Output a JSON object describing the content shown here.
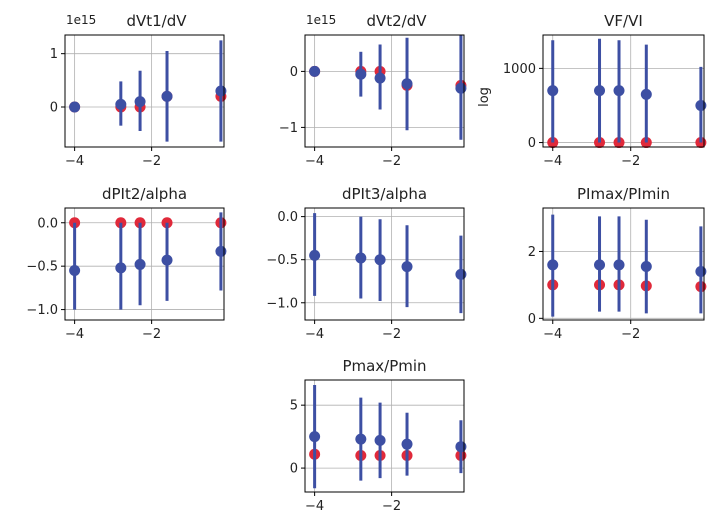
{
  "figure": {
    "background": "#ffffff"
  },
  "colors": {
    "blue": "#3d4fa3",
    "red": "#e0293a",
    "grid": "#b0b0b0",
    "axis": "#000000"
  },
  "chart_data": [
    {
      "type": "scatter",
      "title": "dVt1/dV",
      "offset_text": "1e15",
      "ylabel": "",
      "xlim": [
        -4.25,
        -0.12
      ],
      "ylim": [
        -0.75,
        1.35
      ],
      "xticks": [
        -4,
        -2
      ],
      "xtick_labels": [
        "−4",
        "−2"
      ],
      "yticks": [
        0,
        1
      ],
      "ytick_labels": [
        "0",
        "1"
      ],
      "grid": true,
      "x": [
        -4,
        -2.8,
        -2.3,
        -1.6,
        -0.2
      ],
      "series": [
        {
          "color": "#e0293a",
          "values": [
            0,
            0,
            0,
            0.2,
            0.2
          ]
        },
        {
          "color": "#3d4fa3",
          "values": [
            0,
            0.05,
            0.1,
            0.2,
            0.3
          ],
          "err_low": [
            -0.02,
            -0.35,
            -0.45,
            -0.65,
            -0.65
          ],
          "err_high": [
            0.02,
            0.48,
            0.68,
            1.05,
            1.25
          ]
        }
      ]
    },
    {
      "type": "scatter",
      "title": "dVt2/dV",
      "offset_text": "1e15",
      "ylabel": "",
      "xlim": [
        -4.25,
        -0.12
      ],
      "ylim": [
        -1.35,
        0.65
      ],
      "xticks": [
        -4,
        -2
      ],
      "xtick_labels": [
        "−4",
        "−2"
      ],
      "yticks": [
        0,
        -1
      ],
      "ytick_labels": [
        "0",
        "−1"
      ],
      "grid": true,
      "x": [
        -4,
        -2.8,
        -2.3,
        -1.6,
        -0.2
      ],
      "series": [
        {
          "color": "#e0293a",
          "values": [
            0,
            0,
            0,
            -0.25,
            -0.25
          ]
        },
        {
          "color": "#3d4fa3",
          "values": [
            0,
            -0.05,
            -0.12,
            -0.22,
            -0.3
          ],
          "err_low": [
            -0.02,
            -0.45,
            -0.68,
            -1.05,
            -1.22
          ],
          "err_high": [
            0.02,
            0.35,
            0.48,
            0.6,
            0.65
          ]
        }
      ]
    },
    {
      "type": "scatter",
      "title": "VF/VI",
      "offset_text": "",
      "ylabel": "log",
      "xlim": [
        -4.25,
        -0.12
      ],
      "ylim": [
        -60,
        1450
      ],
      "xticks": [
        -4,
        -2
      ],
      "xtick_labels": [
        "−4",
        "−2"
      ],
      "yticks": [
        0,
        1000
      ],
      "ytick_labels": [
        "0",
        "1000"
      ],
      "grid": true,
      "x": [
        -4,
        -2.8,
        -2.3,
        -1.6,
        -0.2
      ],
      "series": [
        {
          "color": "#e0293a",
          "values": [
            0,
            0,
            0,
            0,
            0
          ]
        },
        {
          "color": "#3d4fa3",
          "values": [
            700,
            700,
            700,
            650,
            500
          ],
          "err_low": [
            0,
            0,
            0,
            0,
            0
          ],
          "err_high": [
            1380,
            1400,
            1380,
            1320,
            1020
          ]
        }
      ]
    },
    {
      "type": "scatter",
      "title": "dPIt2/alpha",
      "offset_text": "",
      "ylabel": "",
      "xlim": [
        -4.25,
        -0.12
      ],
      "ylim": [
        -1.12,
        0.17
      ],
      "xticks": [
        -4,
        -2
      ],
      "xtick_labels": [
        "−4",
        "−2"
      ],
      "yticks": [
        0,
        -0.5,
        -1
      ],
      "ytick_labels": [
        "0.0",
        "−0.5",
        "−1.0"
      ],
      "grid": true,
      "x": [
        -4,
        -2.8,
        -2.3,
        -1.6,
        -0.2
      ],
      "series": [
        {
          "color": "#e0293a",
          "values": [
            0,
            0,
            0,
            0,
            0
          ]
        },
        {
          "color": "#3d4fa3",
          "values": [
            -0.55,
            -0.52,
            -0.48,
            -0.43,
            -0.33
          ],
          "err_low": [
            -1.0,
            -1.0,
            -0.95,
            -0.9,
            -0.78
          ],
          "err_high": [
            0,
            0,
            0,
            0,
            0.12
          ]
        }
      ]
    },
    {
      "type": "scatter",
      "title": "dPIt3/alpha",
      "offset_text": "",
      "ylabel": "",
      "xlim": [
        -4.25,
        -0.12
      ],
      "ylim": [
        -1.2,
        0.1
      ],
      "xticks": [
        -4,
        -2
      ],
      "xtick_labels": [
        "−4",
        "−2"
      ],
      "yticks": [
        0,
        -0.5,
        -1
      ],
      "ytick_labels": [
        "0.0",
        "−0.5",
        "−1.0"
      ],
      "grid": true,
      "x": [
        -4,
        -2.8,
        -2.3,
        -1.6,
        -0.2
      ],
      "series": [
        {
          "color": "#3d4fa3",
          "values": [
            -0.45,
            -0.48,
            -0.5,
            -0.58,
            -0.67
          ],
          "err_low": [
            -0.92,
            -0.95,
            -0.98,
            -1.05,
            -1.12
          ],
          "err_high": [
            0.04,
            0.0,
            -0.03,
            -0.1,
            -0.22
          ]
        }
      ]
    },
    {
      "type": "scatter",
      "title": "PImax/PImin",
      "offset_text": "",
      "ylabel": "",
      "xlim": [
        -4.25,
        -0.12
      ],
      "ylim": [
        -0.05,
        3.3
      ],
      "xticks": [
        -4,
        -2
      ],
      "xtick_labels": [
        "−4",
        "−2"
      ],
      "yticks": [
        0,
        2
      ],
      "ytick_labels": [
        "0",
        "2"
      ],
      "grid": true,
      "x": [
        -4,
        -2.8,
        -2.3,
        -1.6,
        -0.2
      ],
      "series": [
        {
          "color": "#e0293a",
          "values": [
            1.0,
            1.0,
            1.0,
            0.97,
            0.95
          ]
        },
        {
          "color": "#3d4fa3",
          "values": [
            1.6,
            1.6,
            1.6,
            1.55,
            1.4
          ],
          "err_low": [
            0.05,
            0.2,
            0.2,
            0.15,
            0.15
          ],
          "err_high": [
            3.1,
            3.05,
            3.05,
            2.95,
            2.75
          ]
        }
      ]
    },
    {
      "type": "scatter",
      "title": "Pmax/Pmin",
      "offset_text": "",
      "ylabel": "",
      "xlim": [
        -4.25,
        -0.12
      ],
      "ylim": [
        -1.9,
        7.0
      ],
      "xticks": [
        -4,
        -2
      ],
      "xtick_labels": [
        "−4",
        "−2"
      ],
      "yticks": [
        0,
        5
      ],
      "ytick_labels": [
        "0",
        "5"
      ],
      "grid": true,
      "x": [
        -4,
        -2.8,
        -2.3,
        -1.6,
        -0.2
      ],
      "series": [
        {
          "color": "#e0293a",
          "values": [
            1.1,
            1.0,
            1.0,
            1.0,
            1.0
          ]
        },
        {
          "color": "#3d4fa3",
          "values": [
            2.5,
            2.3,
            2.2,
            1.9,
            1.7
          ],
          "err_low": [
            -1.6,
            -1.0,
            -0.8,
            -0.6,
            -0.4
          ],
          "err_high": [
            6.6,
            5.6,
            5.2,
            4.4,
            3.8
          ]
        }
      ]
    }
  ]
}
